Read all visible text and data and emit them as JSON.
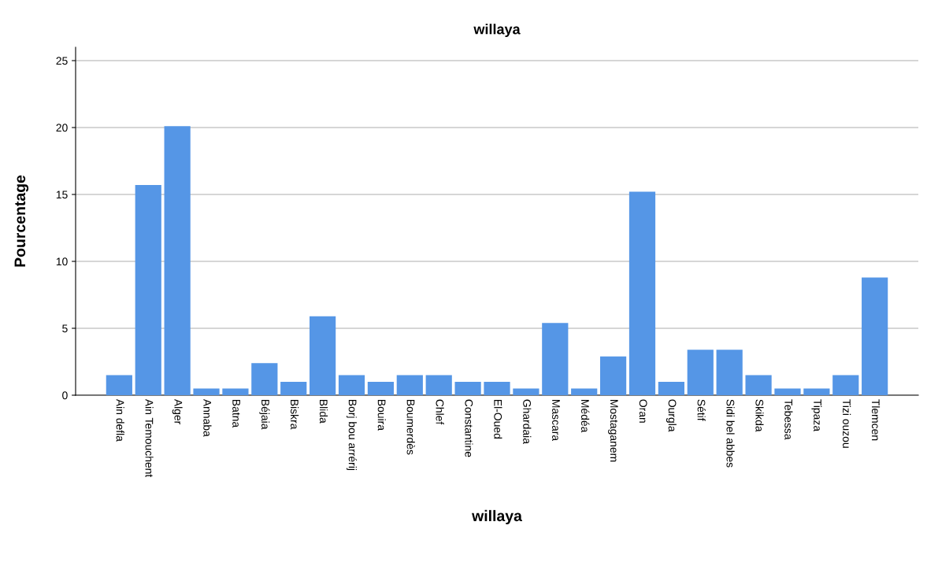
{
  "chart_data": {
    "type": "bar",
    "title": "willaya",
    "xlabel": "willaya",
    "ylabel": "Pourcentage",
    "categories": [
      "Ain defla",
      "Ain Temouchent",
      "Alger",
      "Annaba",
      "Batna",
      "Béjaia",
      "Biskra",
      "Blida",
      "Borj bou arrérij",
      "Bouira",
      "Boumerdès",
      "Chlef",
      "Constantine",
      "El-Oued",
      "Ghardaia",
      "Mascara",
      "Médéa",
      "Mostaganem",
      "Oran",
      "Ourgla",
      "Sétif",
      "Sidi bel abbes",
      "Skikda",
      "Tebessa",
      "Tipaza",
      "Tizi ouzou",
      "Tlemcen"
    ],
    "values": [
      1.5,
      15.7,
      20.1,
      0.5,
      0.5,
      2.4,
      1.0,
      5.9,
      1.5,
      1.0,
      1.5,
      1.5,
      1.0,
      1.0,
      0.5,
      5.4,
      0.5,
      2.9,
      15.2,
      1.0,
      3.4,
      3.4,
      1.5,
      0.5,
      0.5,
      1.5,
      8.8
    ],
    "color": "#5596e6",
    "ylim": [
      0,
      26
    ],
    "yticks": [
      0,
      5,
      10,
      15,
      20,
      25
    ],
    "grid": "y"
  }
}
